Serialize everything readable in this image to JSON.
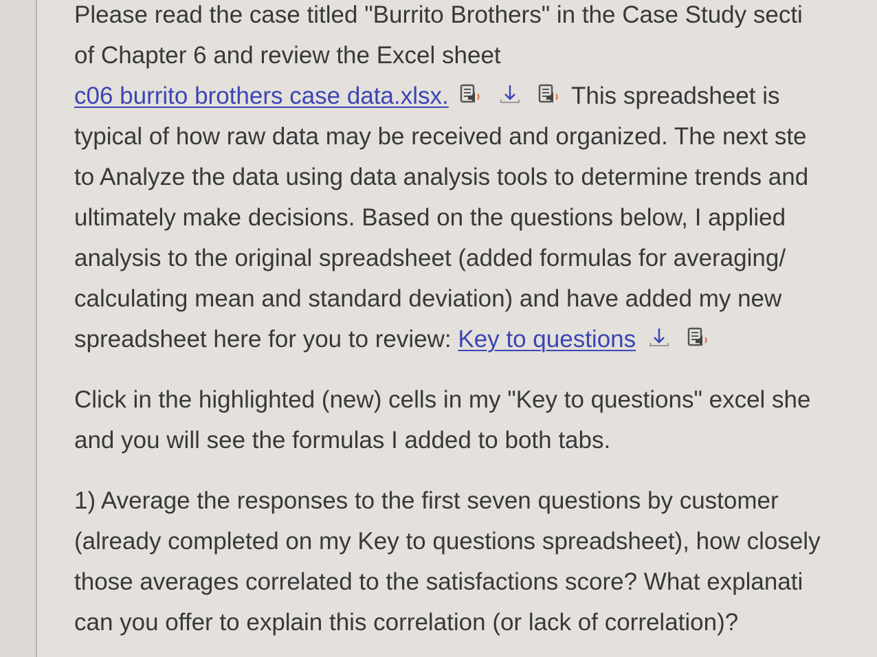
{
  "para1": {
    "line1": "Please read the case titled \"Burrito Brothers\" in the Case Study secti",
    "line2": "of Chapter 6 and review the Excel sheet",
    "link1": "c06 burrito brothers case data.xlsx.",
    "line3_rest": "This spreadsheet is",
    "line4": "typical of how raw data may be received and organized.  The next ste",
    "line5": "to Analyze the data using data analysis tools to determine trends and",
    "line6": "ultimately make decisions.   Based on the questions below, I applied",
    "line7": "analysis to the original spreadsheet (added formulas for averaging/",
    "line8": "calculating mean and standard deviation) and have added my new",
    "line9": "spreadsheet here for you to review: ",
    "link2": "Key to questions"
  },
  "para2": {
    "line1": "Click in the highlighted (new) cells in my \"Key to questions\" excel she",
    "line2": "and you will see the formulas I added to both tabs."
  },
  "para3": {
    "line1": "1) Average the responses to the first seven questions by customer",
    "line2": "(already completed on my Key to questions spreadsheet), how closely",
    "line3": "those averages correlated to the satisfactions score?  What explanati",
    "line4": "can you offer to explain this correlation (or lack of correlation)?"
  },
  "colors": {
    "link": "#3b45b5",
    "text": "#38383a",
    "speaker": "#e0663a"
  }
}
